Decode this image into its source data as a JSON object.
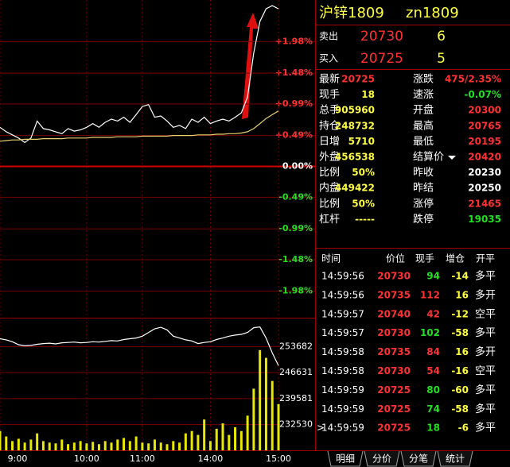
{
  "chart_data": [
    {
      "type": "line",
      "categories": [
        "9:00",
        null,
        null,
        null,
        null,
        null,
        null,
        null,
        null,
        null,
        null,
        null,
        null,
        null,
        "10:00",
        null,
        null,
        null,
        null,
        null,
        null,
        null,
        null,
        "11:00",
        null,
        null,
        null,
        null,
        null,
        null,
        null,
        null,
        null,
        null,
        "14:00",
        null,
        null,
        null,
        null,
        null,
        null,
        null,
        null,
        null,
        null,
        "15:00"
      ],
      "series": [
        {
          "color": "#ffffff",
          "values": [
            0.62,
            0.55,
            0.5,
            0.45,
            0.38,
            0.45,
            0.72,
            0.6,
            0.58,
            0.55,
            0.52,
            0.6,
            0.56,
            0.58,
            0.62,
            0.68,
            0.62,
            0.7,
            0.75,
            0.72,
            0.78,
            0.7,
            0.82,
            0.95,
            0.98,
            0.78,
            0.8,
            0.72,
            0.62,
            0.65,
            0.6,
            0.75,
            0.7,
            0.78,
            0.68,
            0.72,
            0.75,
            0.72,
            0.78,
            0.85,
            1.1,
            1.8,
            2.3,
            2.5,
            2.55,
            2.5
          ]
        },
        {
          "color": "#e8d070",
          "values": [
            0.4,
            0.41,
            0.42,
            0.42,
            0.43,
            0.43,
            0.43,
            0.44,
            0.44,
            0.44,
            0.44,
            0.45,
            0.45,
            0.45,
            0.45,
            0.46,
            0.46,
            0.46,
            0.46,
            0.47,
            0.47,
            0.47,
            0.47,
            0.48,
            0.48,
            0.48,
            0.48,
            0.48,
            0.49,
            0.49,
            0.49,
            0.49,
            0.5,
            0.5,
            0.5,
            0.51,
            0.51,
            0.52,
            0.52,
            0.53,
            0.55,
            0.6,
            0.68,
            0.76,
            0.82,
            0.88
          ]
        }
      ],
      "ylim": [
        -2.4,
        2.64
      ],
      "yticks": [
        {
          "value": 1.98,
          "label": "+1.98%"
        },
        {
          "value": 1.48,
          "label": "+1.48%"
        },
        {
          "value": 0.99,
          "label": "+0.99%"
        },
        {
          "value": 0.49,
          "label": "+0.49%"
        },
        {
          "value": 0,
          "label": "0.00%"
        },
        {
          "value": -0.49,
          "label": "-0.49%"
        },
        {
          "value": -0.99,
          "label": "-0.99%"
        },
        {
          "value": -1.48,
          "label": "-1.48%"
        },
        {
          "value": -1.98,
          "label": "-1.98%"
        }
      ],
      "grid": true
    },
    {
      "type": "combo",
      "series": [
        {
          "type": "line",
          "axis": "y2",
          "color": "#ffffff",
          "values": [
            255800,
            255500,
            255000,
            254200,
            253900,
            254000,
            254300,
            254500,
            254600,
            254400,
            254700,
            254800,
            254900,
            254700,
            254800,
            255000,
            254900,
            255100,
            255300,
            255200,
            255600,
            255800,
            256000,
            256500,
            257500,
            258500,
            258900,
            258200,
            256500,
            256000,
            255500,
            255200,
            254500,
            254800,
            255000,
            255600,
            256000,
            256500,
            256800,
            257000,
            257500,
            258800,
            259000,
            256000,
            252000,
            248500
          ]
        },
        {
          "type": "bar",
          "color": "#e8e800",
          "values": [
            25,
            18,
            12,
            15,
            10,
            14,
            22,
            12,
            10,
            9,
            14,
            8,
            10,
            12,
            9,
            11,
            8,
            12,
            10,
            14,
            16,
            12,
            18,
            10,
            9,
            14,
            10,
            8,
            12,
            10,
            22,
            25,
            20,
            40,
            12,
            28,
            35,
            20,
            30,
            25,
            45,
            80,
            130,
            120,
            90,
            60
          ]
        }
      ],
      "ylim": [
        0,
        170
      ],
      "y2lim": [
        225550,
        261085
      ],
      "y2ticks": [
        232530,
        239581,
        246631,
        253682
      ],
      "grid": true
    }
  ],
  "quote": {
    "title": "沪锌1809",
    "code": "zn1809",
    "ask": {
      "label": "卖出",
      "price": "20730",
      "volume": "6"
    },
    "bid": {
      "label": "买入",
      "price": "20725",
      "volume": "5"
    },
    "rows": [
      {
        "l1": "最新",
        "v1": "20725",
        "c1": "red",
        "l2": "涨跌",
        "v2": "475/2.35%",
        "c2": "red"
      },
      {
        "l1": "现手",
        "v1": "18",
        "c1": "yellow",
        "l2": "速涨",
        "v2": "-0.07%",
        "c2": "green"
      },
      {
        "l1": "总手",
        "v1": "905960",
        "c1": "yellow",
        "l2": "开盘",
        "v2": "20300",
        "c2": "red"
      },
      {
        "l1": "持仓",
        "v1": "248732",
        "c1": "yellow",
        "l2": "最高",
        "v2": "20765",
        "c2": "red"
      },
      {
        "l1": "日增",
        "v1": "5710",
        "c1": "yellow",
        "l2": "最低",
        "v2": "20195",
        "c2": "red"
      },
      {
        "l1": "外盘",
        "v1": "456538",
        "c1": "yellow",
        "l2": "结算价",
        "v2": "20420",
        "c2": "red",
        "dropdown": true
      },
      {
        "l1": "比例",
        "v1": "50%",
        "c1": "yellow",
        "l2": "昨收",
        "v2": "20230",
        "c2": "white"
      },
      {
        "l1": "内盘",
        "v1": "449422",
        "c1": "yellow",
        "l2": "昨结",
        "v2": "20250",
        "c2": "white"
      },
      {
        "l1": "比例",
        "v1": "50%",
        "c1": "yellow",
        "l2": "涨停",
        "v2": "21465",
        "c2": "red"
      },
      {
        "l1": "杠杆",
        "v1": "-----",
        "c1": "yellow",
        "l2": "跌停",
        "v2": "19035",
        "c2": "green"
      }
    ],
    "trades": {
      "header": [
        "时间",
        "价位",
        "现手",
        "增仓",
        "开平"
      ],
      "rows": [
        {
          "time": "14:59:56",
          "price": "20730",
          "volume": "94",
          "vc": "green",
          "change": "-14",
          "kind": "多平"
        },
        {
          "time": "14:59:56",
          "price": "20735",
          "volume": "112",
          "vc": "red",
          "change": "16",
          "kind": "多开"
        },
        {
          "time": "14:59:57",
          "price": "20740",
          "volume": "42",
          "vc": "red",
          "change": "-12",
          "kind": "空平"
        },
        {
          "time": "14:59:57",
          "price": "20730",
          "volume": "102",
          "vc": "green",
          "change": "-58",
          "kind": "多平"
        },
        {
          "time": "14:59:58",
          "price": "20735",
          "volume": "84",
          "vc": "red",
          "change": "16",
          "kind": "多开"
        },
        {
          "time": "14:59:58",
          "price": "20730",
          "volume": "54",
          "vc": "red",
          "change": "-16",
          "kind": "空平"
        },
        {
          "time": "14:59:59",
          "price": "20725",
          "volume": "80",
          "vc": "green",
          "change": "-60",
          "kind": "多平"
        },
        {
          "time": "14:59:59",
          "price": "20725",
          "volume": "74",
          "vc": "green",
          "change": "-58",
          "kind": "多平"
        },
        {
          "marker": ">",
          "time": "14:59:59",
          "price": "20725",
          "volume": "18",
          "vc": "green",
          "change": "-6",
          "kind": "多平"
        }
      ]
    },
    "tabs": [
      "明细",
      "分价",
      "分笔",
      "统计"
    ]
  }
}
